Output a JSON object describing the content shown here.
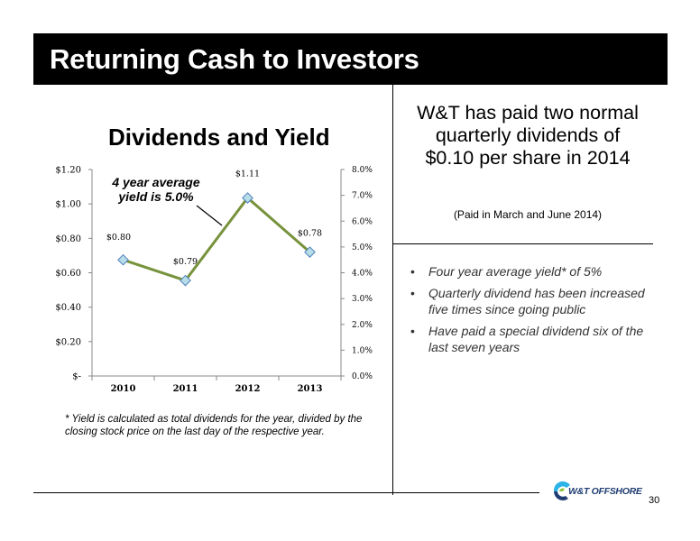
{
  "slide": {
    "title": "Returning Cash to Investors",
    "page_number": "30",
    "footnote": "* Yield is calculated as total dividends for the year, divided by the closing stock price on the last day of the respective year.",
    "annotation": "4 year average yield is 5.0%"
  },
  "right_panel": {
    "headline": "W&T has paid two normal quarterly dividends of $0.10 per share in 2014",
    "subnote": "(Paid in March and June 2014)",
    "bullets": [
      "Four year average yield* of 5%",
      "Quarterly dividend has been increased five times since going public",
      "Have paid a special dividend six of the last seven years"
    ]
  },
  "logo": {
    "text": "W&T OFFSHORE",
    "colors": [
      "#1f3d73",
      "#2bb3e6",
      "#8cc63f"
    ]
  },
  "chart_data": {
    "type": "line",
    "title": "Dividends and Yield",
    "categories": [
      "2010",
      "2011",
      "2012",
      "2013"
    ],
    "series": [
      {
        "axis": "left",
        "values": [
          0.8,
          0.79,
          1.11,
          0.78
        ],
        "data_labels": [
          "$0.80",
          "$0.79",
          "$1.11",
          "$0.78"
        ]
      },
      {
        "axis": "right",
        "values": [
          4.5,
          3.7,
          6.9,
          4.8
        ],
        "color": "#77933c"
      }
    ],
    "left_axis": {
      "ylim": [
        0,
        1.2
      ],
      "ticks": [
        "$-",
        "$0.20",
        "$0.40",
        "$0.60",
        "$0.80",
        "$1.00",
        "$1.20"
      ]
    },
    "right_axis": {
      "ylim": [
        0,
        8
      ],
      "ticks": [
        "0.0%",
        "1.0%",
        "2.0%",
        "3.0%",
        "4.0%",
        "5.0%",
        "6.0%",
        "7.0%",
        "8.0%"
      ]
    },
    "grid": false,
    "legend": "none"
  }
}
